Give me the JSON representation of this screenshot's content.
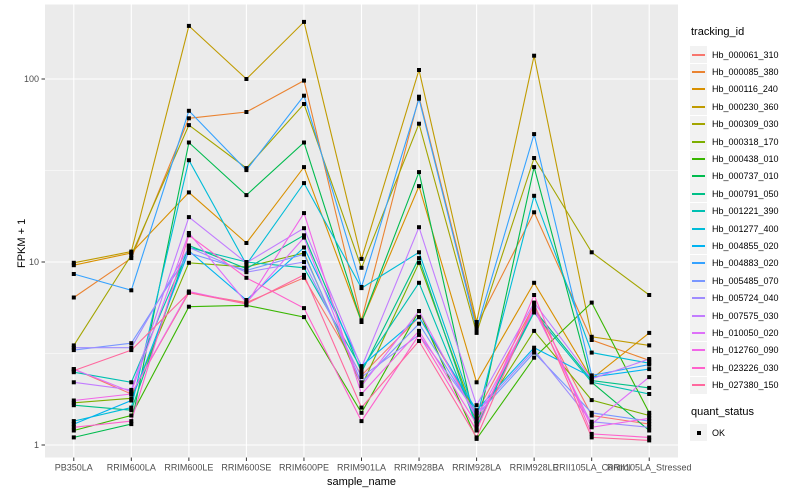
{
  "figure": {
    "background": "#FFFFFF",
    "panel_background": "#EBEBEB",
    "grid_color": "#FFFFFF",
    "tick_color": "#333333",
    "axis_text_color": "#4D4D4D",
    "legend_key_background": "#F2F2F2",
    "point_color": "#000000"
  },
  "chart_data": {
    "type": "line",
    "title": "",
    "xlabel": "sample_name",
    "ylabel": "FPKM + 1",
    "y_scale": "log10",
    "y_ticks": [
      1,
      10,
      100
    ],
    "y_tick_labels": [
      "1",
      "10",
      "100"
    ],
    "y_minor_ticks": [
      3.1623,
      31.623
    ],
    "ylim": [
      0.86,
      255
    ],
    "grid": true,
    "point_marker": "filled-square",
    "legend_position": "right",
    "legend_title": "tracking_id",
    "quant_legend": {
      "title": "quant_status",
      "items": [
        {
          "label": "OK",
          "marker": "black-square"
        }
      ]
    },
    "categories": [
      "PB350LA",
      "RRIM600LA",
      "RRIM600LE",
      "RRIM600SE",
      "RRIM600PE",
      "RRIM901LA",
      "RRIM928BA",
      "RRIM928LA",
      "RRIM928LE",
      "RRII105LA_Control",
      "RRII105LA_Stressed"
    ],
    "series": [
      {
        "name": "Hb_000061_310",
        "color": "#F8766D",
        "values": [
          2.6,
          1.9,
          6.8,
          6.0,
          8.2,
          2.4,
          5.0,
          1.5,
          5.8,
          1.45,
          1.3
        ]
      },
      {
        "name": "Hb_000085_380",
        "color": "#EA8331",
        "values": [
          6.4,
          10.5,
          61,
          66,
          98,
          4.8,
          80,
          4.5,
          18.7,
          3.75,
          2.9
        ]
      },
      {
        "name": "Hb_000116_240",
        "color": "#D89000",
        "values": [
          9.6,
          11.2,
          24,
          12.7,
          33,
          4.7,
          26,
          2.2,
          7.7,
          2.3,
          4.1
        ]
      },
      {
        "name": "Hb_000230_360",
        "color": "#C09B00",
        "values": [
          9.9,
          11.4,
          195,
          100,
          205,
          10.4,
          112,
          4.7,
          134,
          3.9,
          3.5
        ]
      },
      {
        "name": "Hb_000309_030",
        "color": "#A3A500",
        "values": [
          3.5,
          10.9,
          56,
          32.6,
          73,
          9.3,
          57,
          4.1,
          37,
          11.3,
          6.6
        ]
      },
      {
        "name": "Hb_000318_170",
        "color": "#7CAE00",
        "values": [
          1.7,
          1.8,
          9.9,
          9.4,
          11.2,
          2.1,
          9.9,
          1.35,
          4.2,
          1.76,
          1.45
        ]
      },
      {
        "name": "Hb_000438_010",
        "color": "#39B600",
        "values": [
          1.2,
          1.45,
          5.7,
          5.8,
          5.0,
          1.5,
          5.4,
          1.08,
          3.0,
          6.0,
          1.5
        ]
      },
      {
        "name": "Hb_000737_010",
        "color": "#00BB4E",
        "values": [
          1.1,
          1.3,
          45,
          23.2,
          45,
          4.7,
          31,
          1.2,
          33,
          2.2,
          1.2
        ]
      },
      {
        "name": "Hb_000791_050",
        "color": "#00C087",
        "values": [
          1.65,
          1.55,
          12.3,
          9.2,
          14,
          2.5,
          10.5,
          1.25,
          5.5,
          2.25,
          2.05
        ]
      },
      {
        "name": "Hb_001221_390",
        "color": "#00C0B2",
        "values": [
          2.5,
          2.2,
          12,
          10,
          9.3,
          2.6,
          7.7,
          1.3,
          5.3,
          2.2,
          1.9
        ]
      },
      {
        "name": "Hb_001277_400",
        "color": "#00BCD8",
        "values": [
          1.35,
          1.6,
          36,
          9.7,
          27,
          7.2,
          11.3,
          1.4,
          23,
          3.2,
          2.8
        ]
      },
      {
        "name": "Hb_004855_020",
        "color": "#00B3F1",
        "values": [
          1.3,
          1.75,
          11.5,
          6.2,
          12,
          2.7,
          5.0,
          1.55,
          3.4,
          2.35,
          2.6
        ]
      },
      {
        "name": "Hb_004883_020",
        "color": "#35A2FF",
        "values": [
          8.6,
          7.0,
          67,
          31.8,
          81,
          7.3,
          78,
          4.3,
          50,
          2.4,
          2.75
        ]
      },
      {
        "name": "Hb_005485_070",
        "color": "#7997FF",
        "values": [
          3.3,
          3.6,
          11.2,
          9.0,
          11,
          2.2,
          4.6,
          1.45,
          3.2,
          1.5,
          1.35
        ]
      },
      {
        "name": "Hb_005724_040",
        "color": "#9F8CFF",
        "values": [
          3.4,
          3.4,
          12.0,
          8.8,
          10,
          2.35,
          4.0,
          1.5,
          3.3,
          1.34,
          1.25
        ]
      },
      {
        "name": "Hb_007575_030",
        "color": "#C27CFF",
        "values": [
          2.2,
          2.0,
          17.6,
          9.9,
          15.3,
          2.65,
          15.5,
          1.65,
          6.0,
          2.3,
          2.95
        ]
      },
      {
        "name": "Hb_010050_020",
        "color": "#DE70F9",
        "values": [
          2.6,
          1.95,
          14.4,
          6.0,
          13.6,
          2.1,
          5.4,
          1.4,
          5.5,
          1.3,
          2.35
        ]
      },
      {
        "name": "Hb_012760_090",
        "color": "#F166E8",
        "values": [
          1.75,
          1.9,
          6.9,
          5.9,
          18.5,
          1.9,
          4.2,
          1.3,
          5.6,
          1.25,
          1.4
        ]
      },
      {
        "name": "Hb_023226_030",
        "color": "#FF61CC",
        "values": [
          1.25,
          1.35,
          14.0,
          8.2,
          5.6,
          1.35,
          4.0,
          1.2,
          6.6,
          1.15,
          1.1
        ]
      },
      {
        "name": "Hb_027380_150",
        "color": "#FF689E",
        "values": [
          2.55,
          3.3,
          6.8,
          5.9,
          8.5,
          1.6,
          3.7,
          1.1,
          5.9,
          1.1,
          1.06
        ]
      }
    ]
  }
}
